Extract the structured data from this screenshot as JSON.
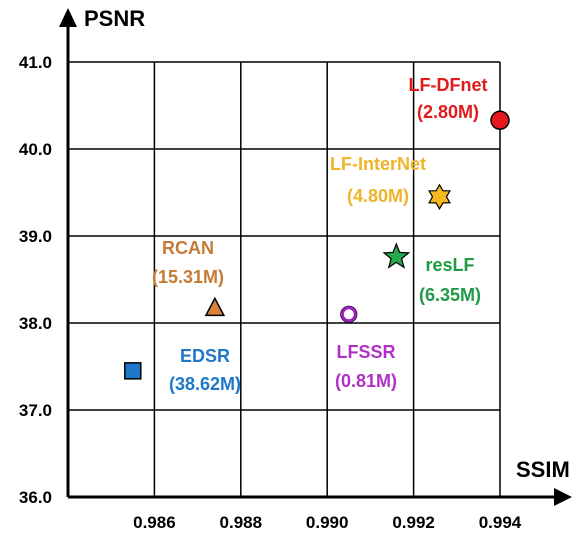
{
  "chart_data": {
    "type": "scatter",
    "title": "",
    "xlabel": "SSIM",
    "ylabel": "PSNR",
    "xlim": [
      0.984,
      0.994
    ],
    "ylim": [
      36.0,
      41.0
    ],
    "grid": true,
    "xticks": [
      "0.986",
      "0.988",
      "0.990",
      "0.992",
      "0.994"
    ],
    "yticks": [
      "36.0",
      "37.0",
      "38.0",
      "39.0",
      "40.0",
      "41.0"
    ],
    "points": [
      {
        "name": "EDSR",
        "params": "(38.62M)",
        "x": 0.9855,
        "y": 37.45,
        "marker": "square",
        "color": "#1f77c9",
        "label_color": "#1f77c9"
      },
      {
        "name": "RCAN",
        "params": "(15.31M)",
        "x": 0.9874,
        "y": 38.18,
        "marker": "triangle",
        "color": "#d9823b",
        "label_color": "#c57a35"
      },
      {
        "name": "LFSSR",
        "params": "(0.81M)",
        "x": 0.9905,
        "y": 38.1,
        "marker": "ring",
        "color": "#a020c0",
        "label_color": "#b030c8"
      },
      {
        "name": "resLF",
        "params": "(6.35M)",
        "x": 0.9916,
        "y": 38.76,
        "marker": "star5",
        "color": "#27a84b",
        "label_color": "#1f9a45"
      },
      {
        "name": "LF-InterNet",
        "params": "(4.80M)",
        "x": 0.9926,
        "y": 39.45,
        "marker": "star6",
        "color": "#f5b820",
        "label_color": "#f0b429"
      },
      {
        "name": "LF-DFnet",
        "params": "(2.80M)",
        "x": 0.994,
        "y": 40.33,
        "marker": "circle",
        "color": "#e8191c",
        "label_color": "#e31a1c"
      }
    ]
  }
}
